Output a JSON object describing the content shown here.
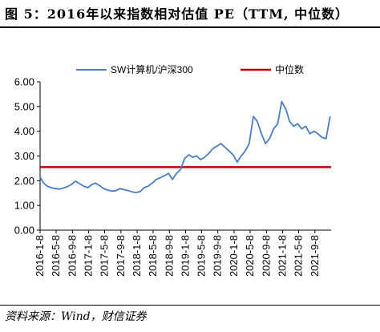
{
  "title": "图 5：2016年以来指数相对估值 PE（TTM, 中位数）",
  "source": "资料来源：Wind，财信证券",
  "colors": {
    "series": "#4a7dbf",
    "median": "#c00000",
    "axis": "#000000"
  },
  "chart_data": {
    "type": "line",
    "ylim": [
      0,
      6
    ],
    "yticks": [
      "0.00",
      "1.00",
      "2.00",
      "3.00",
      "4.00",
      "5.00",
      "6.00"
    ],
    "xticks": [
      "2016-1-8",
      "2016-5-8",
      "2016-9-8",
      "2017-1-8",
      "2017-5-8",
      "2017-9-8",
      "2018-1-8",
      "2018-5-8",
      "2018-9-8",
      "2019-1-8",
      "2019-5-8",
      "2019-9-8",
      "2020-1-8",
      "2020-5-8",
      "2020-9-8",
      "2021-1-8",
      "2021-5-8",
      "2021-9-8"
    ],
    "legend": [
      "SW计算机/沪深300",
      "中位数"
    ],
    "legend_position": "top",
    "median": 2.55,
    "series": [
      {
        "name": "SW计算机/沪深300",
        "points": [
          [
            "2016-01-08",
            2.15
          ],
          [
            "2016-02-01",
            1.92
          ],
          [
            "2016-03-01",
            1.78
          ],
          [
            "2016-04-01",
            1.72
          ],
          [
            "2016-05-01",
            1.68
          ],
          [
            "2016-06-01",
            1.66
          ],
          [
            "2016-07-01",
            1.7
          ],
          [
            "2016-08-01",
            1.76
          ],
          [
            "2016-09-01",
            1.85
          ],
          [
            "2016-10-01",
            1.98
          ],
          [
            "2016-11-01",
            1.88
          ],
          [
            "2016-12-01",
            1.78
          ],
          [
            "2017-01-01",
            1.72
          ],
          [
            "2017-02-01",
            1.85
          ],
          [
            "2017-03-01",
            1.9
          ],
          [
            "2017-04-01",
            1.8
          ],
          [
            "2017-05-01",
            1.68
          ],
          [
            "2017-06-01",
            1.62
          ],
          [
            "2017-07-01",
            1.58
          ],
          [
            "2017-08-01",
            1.6
          ],
          [
            "2017-09-01",
            1.68
          ],
          [
            "2017-10-01",
            1.64
          ],
          [
            "2017-11-01",
            1.6
          ],
          [
            "2017-12-01",
            1.55
          ],
          [
            "2018-01-01",
            1.52
          ],
          [
            "2018-02-01",
            1.56
          ],
          [
            "2018-03-01",
            1.72
          ],
          [
            "2018-04-01",
            1.78
          ],
          [
            "2018-05-01",
            1.9
          ],
          [
            "2018-06-01",
            2.05
          ],
          [
            "2018-07-01",
            2.12
          ],
          [
            "2018-08-01",
            2.2
          ],
          [
            "2018-09-01",
            2.3
          ],
          [
            "2018-10-01",
            2.05
          ],
          [
            "2018-11-01",
            2.3
          ],
          [
            "2018-12-01",
            2.45
          ],
          [
            "2019-01-01",
            2.9
          ],
          [
            "2019-02-01",
            3.05
          ],
          [
            "2019-03-01",
            2.95
          ],
          [
            "2019-04-01",
            3.0
          ],
          [
            "2019-05-01",
            2.85
          ],
          [
            "2019-06-01",
            2.95
          ],
          [
            "2019-07-01",
            3.1
          ],
          [
            "2019-08-01",
            3.3
          ],
          [
            "2019-09-01",
            3.4
          ],
          [
            "2019-10-01",
            3.5
          ],
          [
            "2019-11-01",
            3.35
          ],
          [
            "2019-12-01",
            3.2
          ],
          [
            "2020-01-01",
            3.05
          ],
          [
            "2020-02-01",
            2.75
          ],
          [
            "2020-03-01",
            3.0
          ],
          [
            "2020-04-01",
            3.2
          ],
          [
            "2020-05-01",
            3.5
          ],
          [
            "2020-06-01",
            4.6
          ],
          [
            "2020-07-01",
            4.4
          ],
          [
            "2020-08-01",
            3.9
          ],
          [
            "2020-09-01",
            3.5
          ],
          [
            "2020-10-01",
            3.7
          ],
          [
            "2020-11-01",
            4.1
          ],
          [
            "2020-12-01",
            4.3
          ],
          [
            "2021-01-01",
            5.2
          ],
          [
            "2021-02-01",
            4.9
          ],
          [
            "2021-03-01",
            4.4
          ],
          [
            "2021-04-01",
            4.2
          ],
          [
            "2021-05-01",
            4.3
          ],
          [
            "2021-06-01",
            4.1
          ],
          [
            "2021-07-01",
            4.2
          ],
          [
            "2021-08-01",
            3.9
          ],
          [
            "2021-09-01",
            4.0
          ],
          [
            "2021-10-01",
            3.9
          ],
          [
            "2021-11-01",
            3.75
          ],
          [
            "2021-12-01",
            3.7
          ],
          [
            "2022-01-01",
            4.6
          ]
        ]
      }
    ]
  }
}
